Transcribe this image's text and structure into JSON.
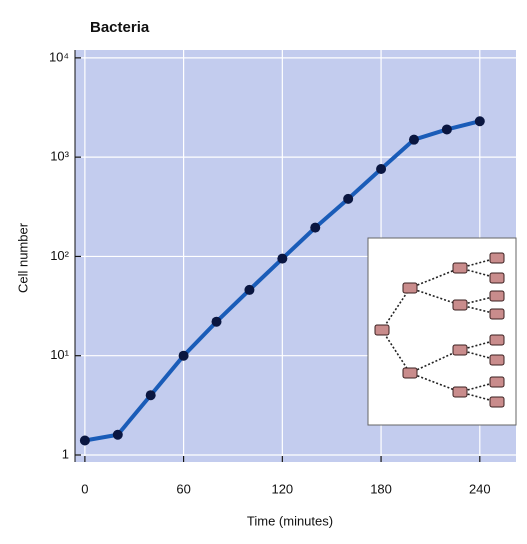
{
  "chart_data": {
    "type": "line",
    "title": "Bacteria",
    "x_label": "Time (minutes)",
    "y_label": "Cell number",
    "x": [
      0,
      20,
      40,
      60,
      80,
      100,
      120,
      140,
      160,
      180,
      200,
      220,
      240
    ],
    "series": [
      {
        "name": "Bacteria",
        "color": "#1a5cb8",
        "marker_color": "#0a1640",
        "values": [
          1.4,
          1.6,
          4,
          10,
          22,
          46,
          95,
          195,
          380,
          760,
          1500,
          1900,
          2300
        ]
      }
    ],
    "xlim": [
      -6,
      262
    ],
    "xticks": [
      0,
      60,
      120,
      180,
      240
    ],
    "ylim": [
      0.85,
      12000
    ],
    "y_scale": "log",
    "yticks": [
      1,
      {
        "value": 10,
        "label": "10¹"
      },
      {
        "value": 100,
        "label": "10²"
      },
      {
        "value": 1000,
        "label": "10³"
      },
      {
        "value": 10000,
        "label": "10⁴"
      }
    ],
    "grid": true,
    "plot_background": "#c3ccee"
  }
}
